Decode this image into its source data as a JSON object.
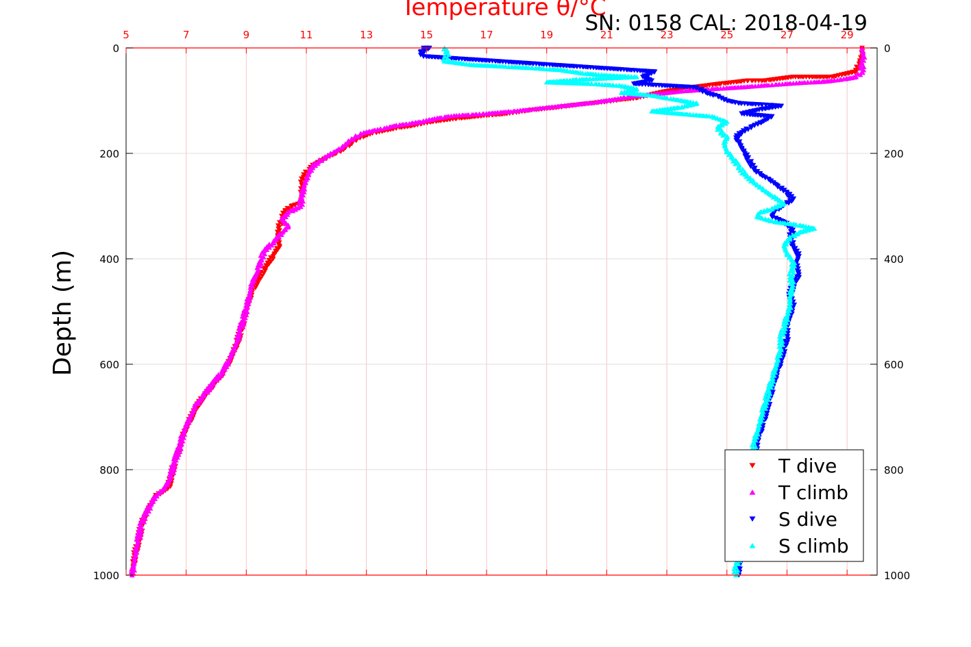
{
  "chart_data": {
    "type": "scatter",
    "title": "Temperature θ/°C",
    "title_color": "#ff0000",
    "annotation": "SN: 0158  CAL: 2018-04-19",
    "ylabel": "Depth (m)",
    "top_axis": {
      "range": [
        5,
        30
      ],
      "ticks": [
        5,
        7,
        9,
        11,
        13,
        15,
        17,
        19,
        21,
        23,
        25,
        27,
        29
      ],
      "tick_labels": [
        "5",
        "7",
        "9",
        "11",
        "13",
        "15",
        "17",
        "19",
        "21",
        "23",
        "25",
        "27",
        "29"
      ],
      "color": "#ff0000"
    },
    "y_axis": {
      "range": [
        0,
        1000
      ],
      "reversed": true,
      "ticks": [
        0,
        200,
        400,
        600,
        800,
        1000
      ],
      "tick_labels": [
        "0",
        "200",
        "400",
        "600",
        "800",
        "1000"
      ]
    },
    "grid": true,
    "legend_position": "bottom-right",
    "series": [
      {
        "name": "T dive",
        "color": "#ff0000",
        "marker": "triangle-down",
        "points": [
          [
            29.5,
            0
          ],
          [
            29.5,
            15
          ],
          [
            29.4,
            30
          ],
          [
            29.3,
            45
          ],
          [
            28.5,
            55
          ],
          [
            27.2,
            55
          ],
          [
            26.3,
            62
          ],
          [
            25.7,
            62
          ],
          [
            24.8,
            68
          ],
          [
            23.8,
            75
          ],
          [
            23.0,
            82
          ],
          [
            22.0,
            95
          ],
          [
            21.5,
            98
          ],
          [
            21.0,
            102
          ],
          [
            20.5,
            105
          ],
          [
            20.0,
            108
          ],
          [
            19.5,
            112
          ],
          [
            19.0,
            115
          ],
          [
            18.5,
            118
          ],
          [
            18.0,
            122
          ],
          [
            17.5,
            126
          ],
          [
            17.0,
            128
          ],
          [
            16.5,
            131
          ],
          [
            16.0,
            134
          ],
          [
            15.6,
            137
          ],
          [
            15.2,
            140
          ],
          [
            14.8,
            144
          ],
          [
            14.5,
            148
          ],
          [
            14.0,
            152
          ],
          [
            13.6,
            157
          ],
          [
            13.2,
            162
          ],
          [
            12.9,
            168
          ],
          [
            12.7,
            172
          ],
          [
            12.5,
            180
          ],
          [
            12.3,
            190
          ],
          [
            12.0,
            200
          ],
          [
            11.6,
            210
          ],
          [
            11.3,
            220
          ],
          [
            11.1,
            230
          ],
          [
            10.9,
            245
          ],
          [
            10.85,
            260
          ],
          [
            10.85,
            280
          ],
          [
            10.8,
            295
          ],
          [
            10.5,
            300
          ],
          [
            10.3,
            310
          ],
          [
            10.2,
            325
          ],
          [
            10.1,
            340
          ],
          [
            10.05,
            355
          ],
          [
            10.1,
            375
          ],
          [
            9.9,
            395
          ],
          [
            9.6,
            420
          ],
          [
            9.4,
            440
          ],
          [
            9.2,
            460
          ],
          [
            9.1,
            480
          ],
          [
            9.0,
            500
          ],
          [
            8.9,
            520
          ],
          [
            8.8,
            540
          ],
          [
            8.7,
            560
          ],
          [
            8.6,
            575
          ],
          [
            8.4,
            600
          ],
          [
            8.2,
            620
          ],
          [
            7.9,
            640
          ],
          [
            7.6,
            660
          ],
          [
            7.3,
            685
          ],
          [
            7.1,
            710
          ],
          [
            6.9,
            735
          ],
          [
            6.8,
            760
          ],
          [
            6.6,
            790
          ],
          [
            6.5,
            815
          ],
          [
            6.4,
            835
          ],
          [
            6.0,
            850
          ],
          [
            5.8,
            870
          ],
          [
            5.6,
            890
          ],
          [
            5.5,
            910
          ],
          [
            5.4,
            940
          ],
          [
            5.3,
            960
          ],
          [
            5.25,
            980
          ],
          [
            5.2,
            1000
          ]
        ]
      },
      {
        "name": "T climb",
        "color": "#ff00ff",
        "marker": "triangle-up",
        "points": [
          [
            29.5,
            0
          ],
          [
            29.55,
            15
          ],
          [
            29.5,
            30
          ],
          [
            29.5,
            45
          ],
          [
            29.3,
            55
          ],
          [
            28.8,
            60
          ],
          [
            28.2,
            64
          ],
          [
            27.5,
            66
          ],
          [
            26.5,
            70
          ],
          [
            25.6,
            74
          ],
          [
            24.5,
            78
          ],
          [
            23.5,
            82
          ],
          [
            22.5,
            88
          ],
          [
            21.7,
            93
          ],
          [
            21.2,
            98
          ],
          [
            20.6,
            103
          ],
          [
            20.0,
            107
          ],
          [
            19.5,
            110
          ],
          [
            19.0,
            113
          ],
          [
            18.4,
            117
          ],
          [
            17.9,
            120
          ],
          [
            17.3,
            123
          ],
          [
            16.9,
            125
          ],
          [
            16.4,
            127
          ],
          [
            16.0,
            128
          ],
          [
            15.6,
            131
          ],
          [
            15.2,
            135
          ],
          [
            14.9,
            139
          ],
          [
            14.5,
            143
          ],
          [
            14.0,
            147
          ],
          [
            13.6,
            152
          ],
          [
            13.2,
            157
          ],
          [
            12.8,
            163
          ],
          [
            12.6,
            170
          ],
          [
            12.4,
            178
          ],
          [
            12.2,
            188
          ],
          [
            11.9,
            198
          ],
          [
            11.6,
            208
          ],
          [
            11.4,
            216
          ],
          [
            11.2,
            225
          ],
          [
            11.1,
            235
          ],
          [
            11.0,
            250
          ],
          [
            10.9,
            265
          ],
          [
            10.85,
            285
          ],
          [
            10.8,
            300
          ],
          [
            10.4,
            312
          ],
          [
            10.2,
            325
          ],
          [
            10.4,
            338
          ],
          [
            10.2,
            350
          ],
          [
            9.9,
            368
          ],
          [
            9.6,
            385
          ],
          [
            9.5,
            400
          ],
          [
            9.4,
            420
          ],
          [
            9.2,
            445
          ],
          [
            9.1,
            470
          ],
          [
            9.0,
            495
          ],
          [
            8.9,
            515
          ],
          [
            8.8,
            535
          ],
          [
            8.7,
            555
          ],
          [
            8.6,
            570
          ],
          [
            8.4,
            595
          ],
          [
            8.2,
            615
          ],
          [
            7.9,
            635
          ],
          [
            7.6,
            658
          ],
          [
            7.3,
            680
          ],
          [
            7.1,
            705
          ],
          [
            6.9,
            730
          ],
          [
            6.8,
            755
          ],
          [
            6.6,
            785
          ],
          [
            6.5,
            812
          ],
          [
            6.3,
            835
          ],
          [
            6.0,
            848
          ],
          [
            5.8,
            868
          ],
          [
            5.6,
            890
          ],
          [
            5.5,
            905
          ],
          [
            5.4,
            935
          ],
          [
            5.3,
            960
          ],
          [
            5.25,
            985
          ],
          [
            5.2,
            1000
          ]
        ]
      },
      {
        "name": "S dive",
        "color": "#0000ff",
        "marker": "triangle-down",
        "points": [
          [
            14.9,
            0
          ],
          [
            15.1,
            0
          ],
          [
            14.8,
            8
          ],
          [
            14.9,
            16
          ],
          [
            22.6,
            45
          ],
          [
            22.2,
            55
          ],
          [
            22.5,
            62
          ],
          [
            21.9,
            68
          ],
          [
            24.0,
            75
          ],
          [
            24.3,
            85
          ],
          [
            24.7,
            92
          ],
          [
            25.0,
            100
          ],
          [
            25.4,
            105
          ],
          [
            26.3,
            108
          ],
          [
            26.8,
            110
          ],
          [
            26.0,
            118
          ],
          [
            25.5,
            125
          ],
          [
            26.5,
            130
          ],
          [
            26.2,
            140
          ],
          [
            25.8,
            150
          ],
          [
            25.5,
            160
          ],
          [
            25.3,
            170
          ],
          [
            25.4,
            180
          ],
          [
            25.5,
            190
          ],
          [
            25.6,
            200
          ],
          [
            25.7,
            210
          ],
          [
            25.8,
            220
          ],
          [
            25.9,
            230
          ],
          [
            26.1,
            240
          ],
          [
            26.4,
            250
          ],
          [
            26.7,
            262
          ],
          [
            27.0,
            275
          ],
          [
            27.2,
            288
          ],
          [
            26.9,
            298
          ],
          [
            26.6,
            310
          ],
          [
            26.5,
            320
          ],
          [
            26.9,
            330
          ],
          [
            27.2,
            345
          ],
          [
            27.1,
            360
          ],
          [
            27.2,
            375
          ],
          [
            27.4,
            395
          ],
          [
            27.3,
            410
          ],
          [
            27.4,
            430
          ],
          [
            27.2,
            450
          ],
          [
            27.1,
            470
          ],
          [
            27.2,
            490
          ],
          [
            27.1,
            510
          ],
          [
            27.0,
            530
          ],
          [
            27.0,
            550
          ],
          [
            26.9,
            570
          ],
          [
            26.8,
            590
          ],
          [
            26.7,
            610
          ],
          [
            26.6,
            630
          ],
          [
            26.5,
            650
          ],
          [
            26.4,
            670
          ],
          [
            26.3,
            690
          ],
          [
            26.2,
            710
          ],
          [
            26.1,
            730
          ],
          [
            26.0,
            750
          ],
          [
            26.0,
            770
          ],
          [
            25.9,
            790
          ],
          [
            25.9,
            810
          ],
          [
            25.8,
            830
          ],
          [
            25.8,
            850
          ],
          [
            25.7,
            870
          ],
          [
            25.7,
            890
          ],
          [
            25.6,
            910
          ],
          [
            25.6,
            930
          ],
          [
            25.5,
            950
          ],
          [
            25.5,
            970
          ],
          [
            25.4,
            985
          ],
          [
            25.4,
            1000
          ]
        ]
      },
      {
        "name": "S climb",
        "color": "#00ffff",
        "marker": "triangle-up",
        "points": [
          [
            15.6,
            0
          ],
          [
            15.7,
            10
          ],
          [
            15.6,
            25
          ],
          [
            16.5,
            32
          ],
          [
            17.5,
            35
          ],
          [
            18.5,
            38
          ],
          [
            19.5,
            42
          ],
          [
            20.2,
            48
          ],
          [
            21.0,
            52
          ],
          [
            22.0,
            55
          ],
          [
            20.0,
            60
          ],
          [
            19.0,
            65
          ],
          [
            20.5,
            68
          ],
          [
            21.5,
            72
          ],
          [
            22.0,
            78
          ],
          [
            21.5,
            85
          ],
          [
            22.5,
            90
          ],
          [
            23.0,
            95
          ],
          [
            23.5,
            100
          ],
          [
            24.0,
            105
          ],
          [
            23.5,
            112
          ],
          [
            22.5,
            120
          ],
          [
            23.5,
            125
          ],
          [
            24.5,
            130
          ],
          [
            25.0,
            140
          ],
          [
            24.7,
            150
          ],
          [
            24.8,
            160
          ],
          [
            25.0,
            170
          ],
          [
            24.9,
            180
          ],
          [
            25.0,
            195
          ],
          [
            25.2,
            210
          ],
          [
            25.4,
            225
          ],
          [
            25.6,
            240
          ],
          [
            25.9,
            255
          ],
          [
            26.2,
            268
          ],
          [
            26.5,
            280
          ],
          [
            26.9,
            295
          ],
          [
            26.5,
            305
          ],
          [
            26.1,
            312
          ],
          [
            26.0,
            320
          ],
          [
            26.6,
            330
          ],
          [
            27.3,
            335
          ],
          [
            27.9,
            342
          ],
          [
            27.4,
            350
          ],
          [
            27.1,
            360
          ],
          [
            26.9,
            375
          ],
          [
            27.0,
            390
          ],
          [
            27.2,
            405
          ],
          [
            27.2,
            420
          ],
          [
            27.1,
            435
          ],
          [
            27.2,
            450
          ],
          [
            27.1,
            470
          ],
          [
            27.1,
            490
          ],
          [
            27.0,
            510
          ],
          [
            26.9,
            530
          ],
          [
            26.8,
            550
          ],
          [
            26.8,
            570
          ],
          [
            26.7,
            590
          ],
          [
            26.6,
            610
          ],
          [
            26.5,
            630
          ],
          [
            26.4,
            650
          ],
          [
            26.3,
            670
          ],
          [
            26.2,
            690
          ],
          [
            26.1,
            710
          ],
          [
            26.0,
            730
          ],
          [
            25.9,
            750
          ],
          [
            25.9,
            770
          ],
          [
            25.8,
            790
          ],
          [
            25.8,
            810
          ],
          [
            25.7,
            830
          ],
          [
            25.7,
            850
          ],
          [
            25.6,
            870
          ],
          [
            25.6,
            890
          ],
          [
            25.5,
            910
          ],
          [
            25.5,
            930
          ],
          [
            25.4,
            950
          ],
          [
            25.4,
            970
          ],
          [
            25.3,
            985
          ],
          [
            25.3,
            1000
          ]
        ]
      }
    ]
  }
}
